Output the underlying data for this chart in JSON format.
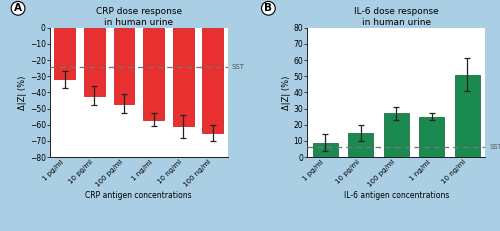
{
  "crp_title": "CRP dose response\nin human urine",
  "il6_title": "IL-6 dose response\nin human urine",
  "crp_xlabel": "CRP antigen concentrations",
  "il6_xlabel": "IL-6 antigen concentrations",
  "ylabel": "Δ|Z| (%)",
  "crp_categories": [
    "1 pg/ml",
    "10 pg/ml",
    "100 pg/ml",
    "1 ng/ml",
    "10 ng/ml",
    "100 ng/ml"
  ],
  "il6_categories": [
    "1 pg/ml",
    "10 pg/ml",
    "100 pg/ml",
    "1 ng/ml",
    "10 ng/ml"
  ],
  "crp_values": [
    -32,
    -42,
    -47,
    -57,
    -61,
    -65
  ],
  "crp_errors": [
    5,
    6,
    6,
    4,
    7,
    5
  ],
  "il6_values": [
    9,
    15,
    27,
    25,
    51
  ],
  "il6_errors": [
    5,
    5,
    4,
    2,
    10
  ],
  "crp_bar_color": "#e83030",
  "crp_edge_color": "#c01010",
  "il6_bar_color": "#1a8a50",
  "il6_edge_color": "#0f6035",
  "crp_sst": -24,
  "il6_sst": 6,
  "sst_color": "#777777",
  "background_color": "#aacfe4",
  "plot_bg_color": "#ffffff",
  "crp_ylim": [
    -80,
    0
  ],
  "crp_yticks": [
    0,
    -10,
    -20,
    -30,
    -40,
    -50,
    -60,
    -70,
    -80
  ],
  "il6_ylim": [
    0,
    80
  ],
  "il6_yticks": [
    0,
    10,
    20,
    30,
    40,
    50,
    60,
    70,
    80
  ],
  "label_A": "A",
  "label_B": "B",
  "sst_label": "SST"
}
